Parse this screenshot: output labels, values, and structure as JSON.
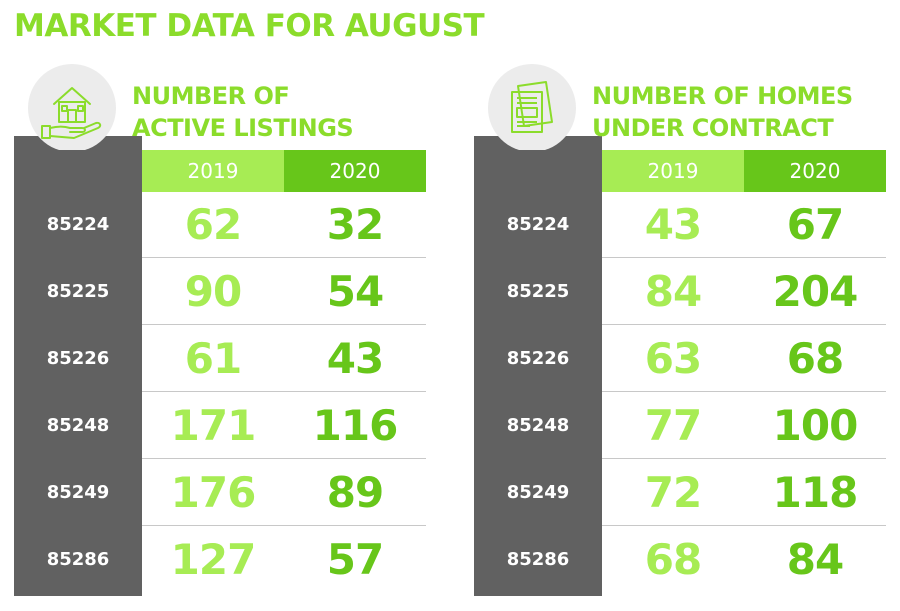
{
  "title": "MARKET DATA FOR AUGUST",
  "colors": {
    "light_green": "#a7ec54",
    "dark_green": "#67c61a",
    "title_green": "#8bdc2b",
    "grey": "#616161"
  },
  "chart_data": [
    {
      "type": "table",
      "title_line1": "NUMBER OF",
      "title_line2": "ACTIVE LISTINGS",
      "icon": "house-in-hand-icon",
      "columns": [
        "2019",
        "2020"
      ],
      "rows": [
        {
          "zip": "85224",
          "values": [
            "62",
            "32"
          ]
        },
        {
          "zip": "85225",
          "values": [
            "90",
            "54"
          ]
        },
        {
          "zip": "85226",
          "values": [
            "61",
            "43"
          ]
        },
        {
          "zip": "85248",
          "values": [
            "171",
            "116"
          ]
        },
        {
          "zip": "85249",
          "values": [
            "176",
            "89"
          ]
        },
        {
          "zip": "85286",
          "values": [
            "127",
            "57"
          ]
        }
      ]
    },
    {
      "type": "table",
      "title_line1": "NUMBER OF HOMES",
      "title_line2": "UNDER CONTRACT",
      "icon": "contract-document-icon",
      "columns": [
        "2019",
        "2020"
      ],
      "rows": [
        {
          "zip": "85224",
          "values": [
            "43",
            "67"
          ]
        },
        {
          "zip": "85225",
          "values": [
            "84",
            "204"
          ]
        },
        {
          "zip": "85226",
          "values": [
            "63",
            "68"
          ]
        },
        {
          "zip": "85248",
          "values": [
            "77",
            "100"
          ]
        },
        {
          "zip": "85249",
          "values": [
            "72",
            "118"
          ]
        },
        {
          "zip": "85286",
          "values": [
            "68",
            "84"
          ]
        }
      ]
    }
  ]
}
